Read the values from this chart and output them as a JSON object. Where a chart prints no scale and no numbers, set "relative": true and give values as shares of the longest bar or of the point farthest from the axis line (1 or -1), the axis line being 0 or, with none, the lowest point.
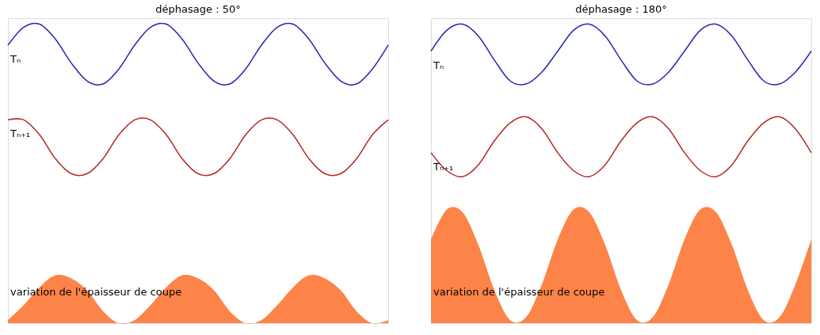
{
  "chart_data": [
    {
      "type": "line",
      "title": "déphasage : 50°",
      "relative": true,
      "categories": [
        null,
        null,
        null,
        null,
        null,
        null,
        null,
        null,
        null,
        null,
        null,
        null,
        null,
        null,
        null,
        null,
        null,
        null,
        null,
        null,
        null,
        null,
        null,
        null,
        null
      ],
      "series": [
        {
          "name": "Tₙ",
          "color": "#2626b4",
          "values": [
            0.93,
            0.99,
            1.0,
            0.95,
            0.87,
            0.81,
            0.8,
            0.85,
            0.93,
            0.99,
            1.0,
            0.95,
            0.87,
            0.81,
            0.8,
            0.85,
            0.93,
            0.99,
            1.0,
            0.95,
            0.87,
            0.81,
            0.8,
            0.85,
            0.93
          ]
        },
        {
          "name": "Tₙ₊₁",
          "color": "#b42626",
          "values": [
            0.68,
            0.68,
            0.63,
            0.55,
            0.5,
            0.5,
            0.55,
            0.63,
            0.68,
            0.68,
            0.63,
            0.55,
            0.5,
            0.5,
            0.55,
            0.63,
            0.68,
            0.68,
            0.63,
            0.55,
            0.5,
            0.5,
            0.55,
            0.63,
            0.68
          ]
        },
        {
          "name": "variation de l'épaisseur de coupe",
          "type": "area",
          "color": "#fd8448",
          "values": [
            0.01,
            0.06,
            0.12,
            0.16,
            0.15,
            0.11,
            0.04,
            0.0,
            0.01,
            0.06,
            0.12,
            0.16,
            0.15,
            0.11,
            0.04,
            0.0,
            0.01,
            0.06,
            0.12,
            0.16,
            0.15,
            0.11,
            0.04,
            0.0,
            0.01
          ]
        }
      ]
    },
    {
      "type": "line",
      "title": "déphasage : 180°",
      "relative": true,
      "categories": [
        null,
        null,
        null,
        null,
        null,
        null,
        null,
        null,
        null,
        null,
        null,
        null,
        null,
        null,
        null,
        null,
        null,
        null,
        null,
        null,
        null,
        null,
        null,
        null,
        null
      ],
      "series": [
        {
          "name": "Tₙ",
          "color": "#2626b4",
          "values": [
            0.91,
            0.98,
            1.0,
            0.96,
            0.88,
            0.81,
            0.8,
            0.84,
            0.91,
            0.98,
            1.0,
            0.96,
            0.88,
            0.81,
            0.8,
            0.84,
            0.91,
            0.98,
            1.0,
            0.96,
            0.88,
            0.81,
            0.8,
            0.84,
            0.91
          ]
        },
        {
          "name": "Tₙ₊₁",
          "color": "#b42626",
          "values": [
            0.57,
            0.51,
            0.49,
            0.53,
            0.61,
            0.67,
            0.69,
            0.65,
            0.57,
            0.51,
            0.49,
            0.53,
            0.61,
            0.67,
            0.69,
            0.65,
            0.57,
            0.51,
            0.49,
            0.53,
            0.61,
            0.67,
            0.69,
            0.65,
            0.57
          ]
        },
        {
          "name": "variation de l'épaisseur de coupe",
          "type": "area",
          "color": "#fd8448",
          "values": [
            0.28,
            0.38,
            0.37,
            0.26,
            0.11,
            0.01,
            0.02,
            0.13,
            0.28,
            0.38,
            0.37,
            0.26,
            0.11,
            0.01,
            0.02,
            0.13,
            0.28,
            0.38,
            0.37,
            0.26,
            0.11,
            0.01,
            0.02,
            0.13,
            0.28
          ]
        }
      ]
    }
  ]
}
